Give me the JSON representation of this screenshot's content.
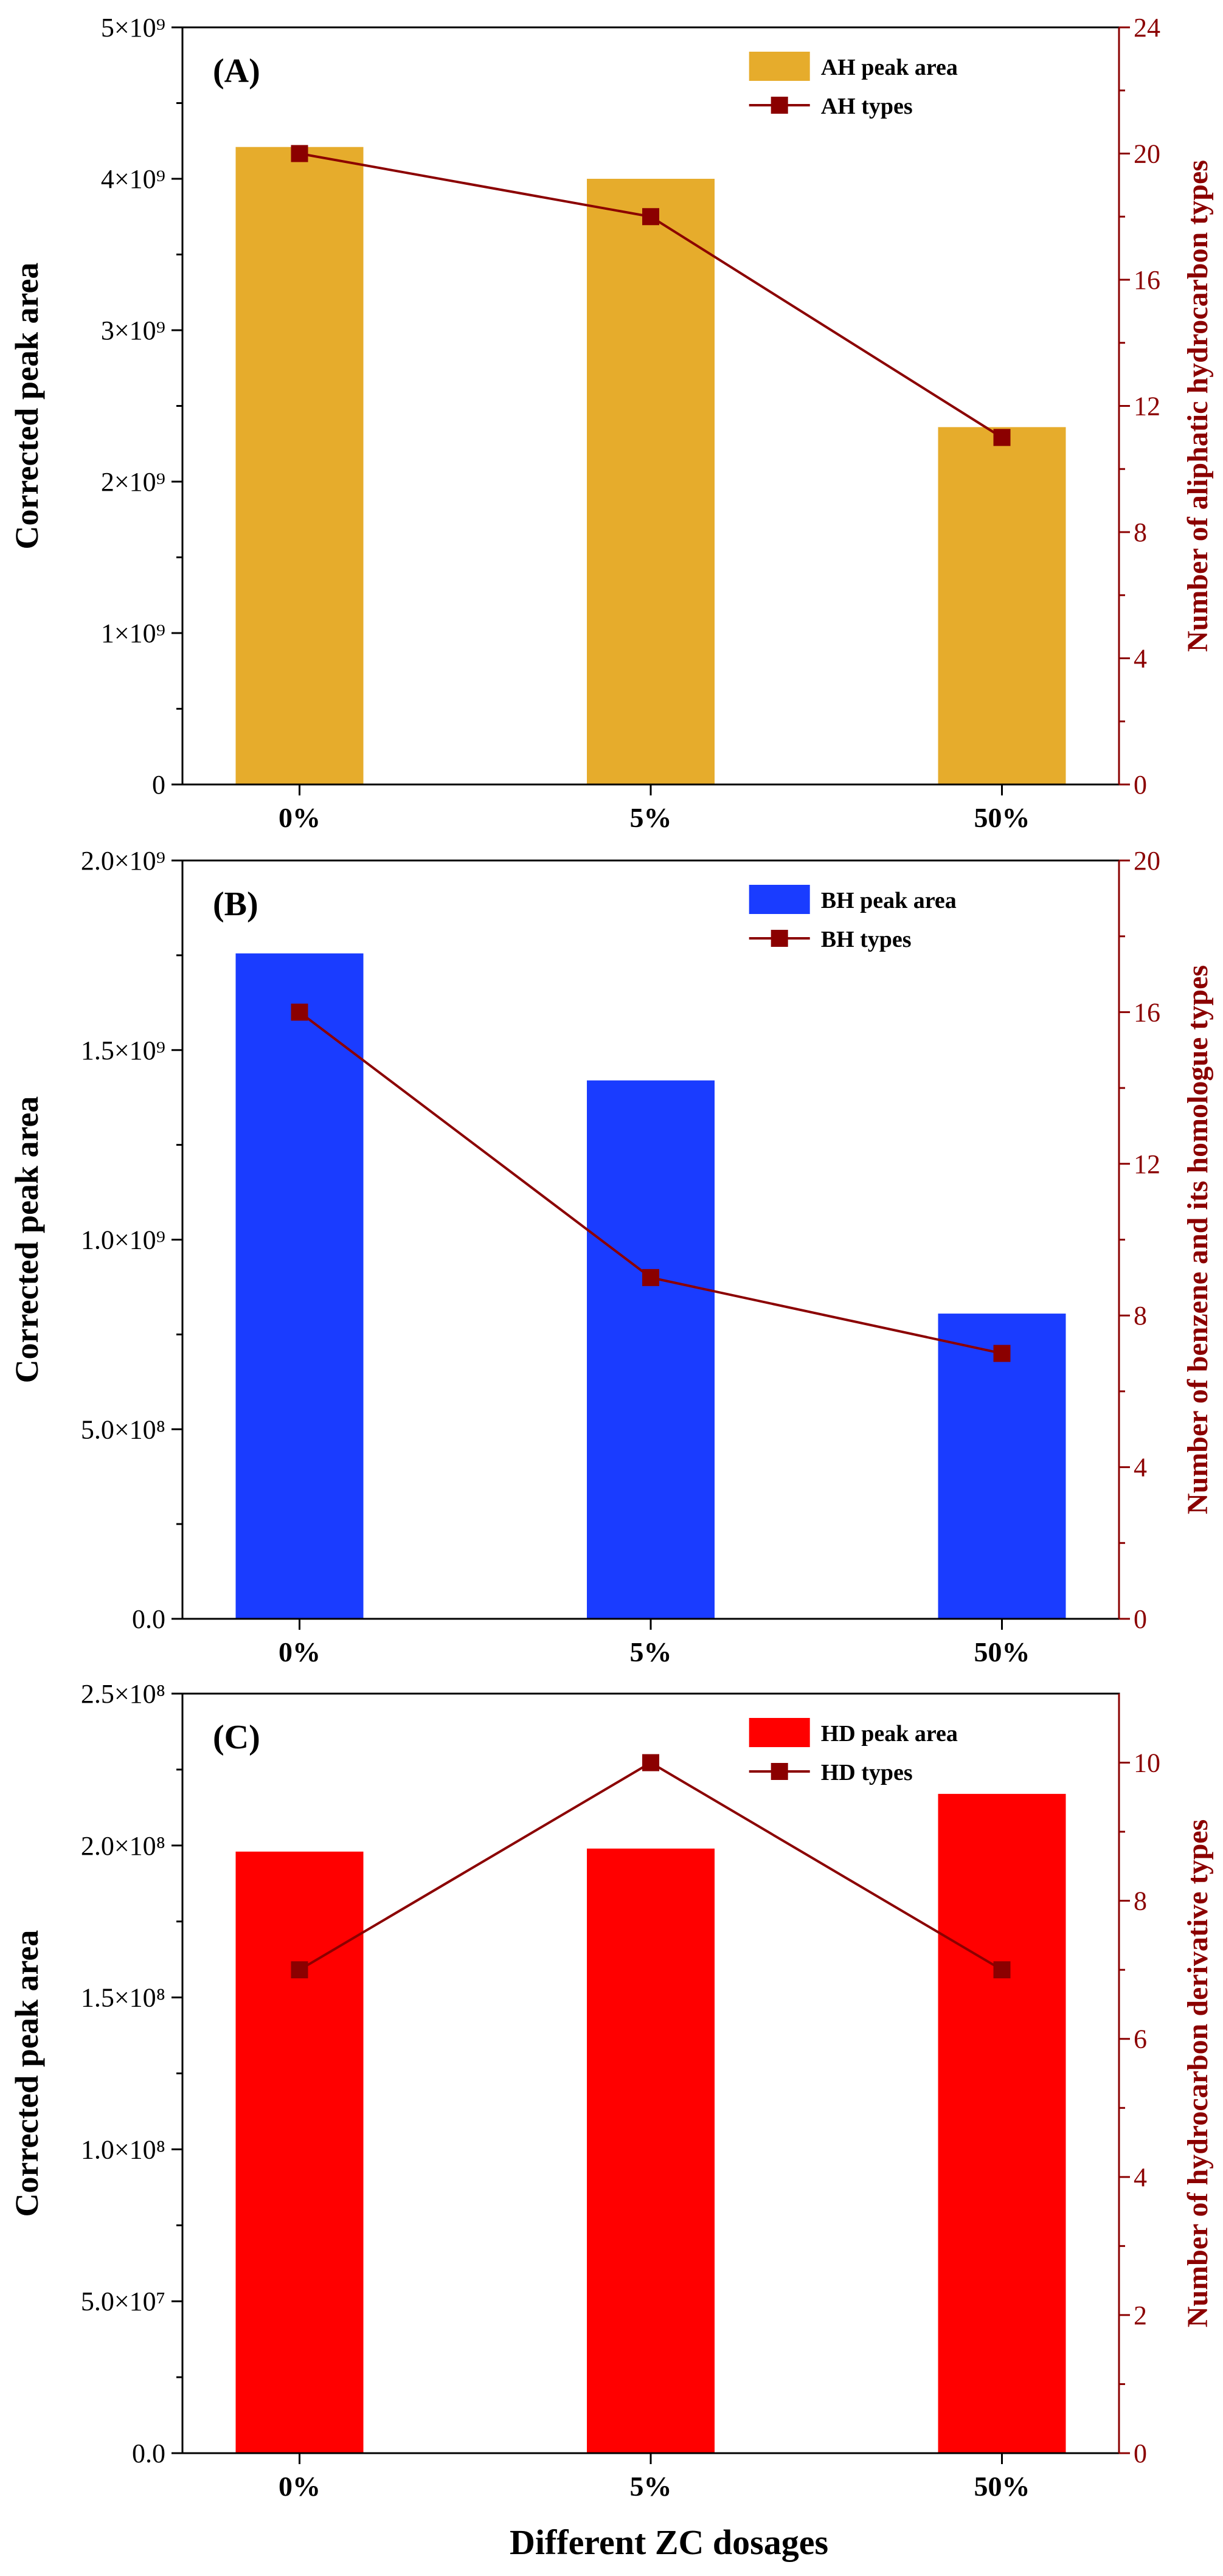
{
  "xlabel": "Different ZC dosages",
  "chart_data": [
    {
      "type": "bar",
      "panel_label": "(A)",
      "categories": [
        "0%",
        "5%",
        "50%"
      ],
      "ylabel": "Corrected peak area",
      "ylim": [
        0,
        5000000000
      ],
      "yticks": [
        0,
        1000000000,
        2000000000,
        3000000000,
        4000000000,
        5000000000
      ],
      "ytick_labels": [
        "0",
        "1×10⁹",
        "2×10⁹",
        "3×10⁹",
        "4×10⁹",
        "5×10⁹"
      ],
      "y2label": "Number of aliphatic hydrocarbon types",
      "y2lim": [
        0,
        24
      ],
      "y2ticks": [
        0,
        4,
        8,
        12,
        16,
        20,
        24
      ],
      "series": [
        {
          "name": "AH peak area",
          "type": "bar",
          "axis": "left",
          "color": "#E6AC2C",
          "values": [
            4210000000,
            4000000000,
            2360000000
          ]
        },
        {
          "name": "AH types",
          "type": "line",
          "axis": "right",
          "color": "#8B0000",
          "values": [
            20,
            18,
            11
          ]
        }
      ],
      "legend_position": "top-right"
    },
    {
      "type": "bar",
      "panel_label": "(B)",
      "categories": [
        "0%",
        "5%",
        "50%"
      ],
      "ylabel": "Corrected peak area",
      "ylim": [
        0,
        2000000000
      ],
      "yticks": [
        0,
        500000000,
        1000000000,
        1500000000,
        2000000000
      ],
      "ytick_labels": [
        "0.0",
        "5.0×10⁸",
        "1.0×10⁹",
        "1.5×10⁹",
        "2.0×10⁹"
      ],
      "y2label": "Number of benzene and its homologue types",
      "y2lim": [
        0,
        20
      ],
      "y2ticks": [
        0,
        4,
        8,
        12,
        16,
        20
      ],
      "series": [
        {
          "name": "BH peak area",
          "type": "bar",
          "axis": "left",
          "color": "#1A3CFF",
          "values": [
            1755000000,
            1420000000,
            805000000
          ]
        },
        {
          "name": "BH types",
          "type": "line",
          "axis": "right",
          "color": "#8B0000",
          "values": [
            16,
            9,
            7
          ]
        }
      ],
      "legend_position": "top-right"
    },
    {
      "type": "bar",
      "panel_label": "(C)",
      "categories": [
        "0%",
        "5%",
        "50%"
      ],
      "ylabel": "Corrected peak area",
      "ylim": [
        0,
        250000000
      ],
      "yticks": [
        0,
        50000000,
        100000000,
        150000000,
        200000000,
        250000000
      ],
      "ytick_labels": [
        "0.0",
        "5.0×10⁷",
        "1.0×10⁸",
        "1.5×10⁸",
        "2.0×10⁸",
        "2.5×10⁸"
      ],
      "y2label": "Number of hydrocarbon derivative types",
      "y2lim": [
        0,
        11
      ],
      "y2ticks": [
        0,
        2,
        4,
        6,
        8,
        10
      ],
      "series": [
        {
          "name": "HD peak area",
          "type": "bar",
          "axis": "left",
          "color": "#FF0000",
          "values": [
            198000000,
            199000000,
            217000000
          ]
        },
        {
          "name": "HD types",
          "type": "line",
          "axis": "right",
          "color": "#8B0000",
          "values": [
            7,
            10,
            7
          ]
        }
      ],
      "legend_position": "top-right"
    }
  ]
}
